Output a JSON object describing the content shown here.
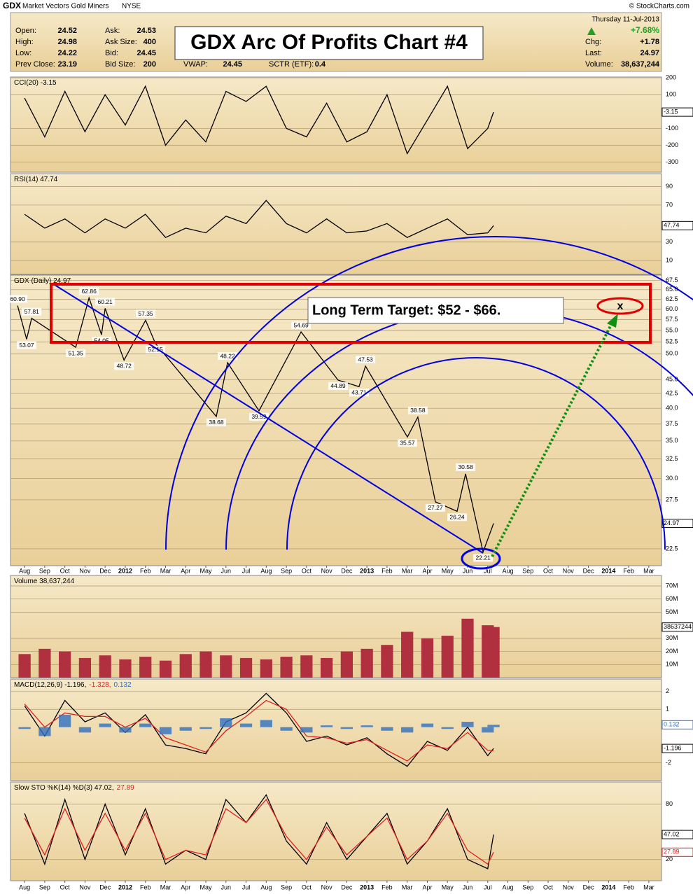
{
  "header": {
    "ticker": "GDX",
    "name": "Market Vectors Gold Miners",
    "exchange": "NYSE",
    "source": "© StockCharts.com",
    "date": "Thursday 11-Jul-2013",
    "change_pct": "+7.68%",
    "stats": [
      [
        [
          "Open:",
          "24.52"
        ],
        [
          "High:",
          "24.98"
        ],
        [
          "Low:",
          "24.22"
        ],
        [
          "Prev Close:",
          "23.19"
        ]
      ],
      [
        [
          "Ask:",
          "24.53"
        ],
        [
          "Ask Size:",
          "400"
        ],
        [
          "Bid:",
          "24.45"
        ],
        [
          "Bid Size:",
          "200"
        ]
      ]
    ],
    "extra": [
      [
        "VWAP:",
        "24.45"
      ],
      [
        "SCTR (ETF):",
        "0.4"
      ]
    ],
    "right": [
      [
        "Chg:",
        "+1.78"
      ],
      [
        "Last:",
        "24.97"
      ],
      [
        "Volume:",
        "38,637,244"
      ]
    ]
  },
  "annotations": {
    "title": "GDX Arc Of Profits Chart #4",
    "target": "Long Term Target: $52 - $66.",
    "marker": "x"
  },
  "chart_data": [
    {
      "type": "line",
      "title": [
        "CCI(20) -3.15"
      ],
      "xlim": [
        -0.7,
        31.63
      ],
      "ylim": [
        -360,
        205
      ],
      "yticks": [
        200,
        100,
        -100,
        -200,
        -300
      ],
      "grid": true,
      "x": [
        0,
        1,
        2,
        3,
        4,
        5,
        6,
        7,
        8,
        9,
        10,
        11,
        12,
        13,
        14,
        15,
        16,
        17,
        18,
        19,
        20,
        21,
        22,
        23,
        23.29
      ],
      "series": [
        {
          "color": "#000000",
          "tag": true,
          "values": [
            80,
            -150,
            120,
            -120,
            100,
            -80,
            150,
            -200,
            -50,
            -180,
            120,
            60,
            150,
            -100,
            -150,
            50,
            -180,
            -120,
            100,
            -250,
            -50,
            150,
            -220,
            -100,
            -3.15
          ]
        }
      ]
    },
    {
      "type": "line",
      "title": [
        "RSI(14) 47.74"
      ],
      "xlim": [
        -0.7,
        31.63
      ],
      "ylim": [
        -5,
        104
      ],
      "yticks": [
        90,
        70,
        30,
        10
      ],
      "grid": true,
      "x": [
        0,
        1,
        2,
        3,
        4,
        5,
        6,
        7,
        8,
        9,
        10,
        11,
        12,
        13,
        14,
        15,
        16,
        17,
        18,
        19,
        20,
        21,
        22,
        23,
        23.29
      ],
      "series": [
        {
          "color": "#000000",
          "tag": true,
          "values": [
            60,
            45,
            55,
            40,
            55,
            45,
            60,
            35,
            45,
            40,
            58,
            50,
            75,
            50,
            40,
            55,
            40,
            42,
            50,
            35,
            45,
            55,
            38,
            40,
            47.74
          ]
        }
      ]
    },
    {
      "type": "line",
      "title": [
        "GDX (Daily) 24.97"
      ],
      "log": true,
      "xlim": [
        -0.7,
        31.63
      ],
      "ylim": [
        21,
        69
      ],
      "grid": true,
      "yticks": [
        {
          "value": 67.5,
          "label": "67.5"
        },
        {
          "value": 65,
          "label": "65.0"
        },
        {
          "value": 62.5,
          "label": "62.5"
        },
        {
          "value": 60,
          "label": "60.0"
        },
        {
          "value": 57.5,
          "label": "57.5"
        },
        {
          "value": 55,
          "label": "55.0"
        },
        {
          "value": 52.5,
          "label": "52.5"
        },
        {
          "value": 50,
          "label": "50.0"
        },
        {
          "value": 45,
          "label": "45.0"
        },
        {
          "value": 42.5,
          "label": "42.5"
        },
        {
          "value": 40,
          "label": "40.0"
        },
        {
          "value": 37.5,
          "label": "37.5"
        },
        {
          "value": 35,
          "label": "35.0"
        },
        {
          "value": 32.5,
          "label": "32.5"
        },
        {
          "value": 30,
          "label": "30.0"
        },
        {
          "value": 27.5,
          "label": "27.5"
        },
        {
          "value": 22.5,
          "label": "22.5"
        }
      ],
      "xticks": [
        {
          "value": 0,
          "label": "Aug"
        },
        {
          "value": 1,
          "label": "Sep"
        },
        {
          "value": 2,
          "label": "Oct"
        },
        {
          "value": 3,
          "label": "Nov"
        },
        {
          "value": 4,
          "label": "Dec"
        },
        {
          "value": 5,
          "label": "2012"
        },
        {
          "value": 6,
          "label": "Feb"
        },
        {
          "value": 7,
          "label": "Mar"
        },
        {
          "value": 8,
          "label": "Apr"
        },
        {
          "value": 9,
          "label": "May"
        },
        {
          "value": 10,
          "label": "Jun"
        },
        {
          "value": 11,
          "label": "Jul"
        },
        {
          "value": 12,
          "label": "Aug"
        },
        {
          "value": 13,
          "label": "Sep"
        },
        {
          "value": 14,
          "label": "Oct"
        },
        {
          "value": 15,
          "label": "Nov"
        },
        {
          "value": 16,
          "label": "Dec"
        },
        {
          "value": 17,
          "label": "2013"
        },
        {
          "value": 18,
          "label": "Feb"
        },
        {
          "value": 19,
          "label": "Mar"
        },
        {
          "value": 20,
          "label": "Apr"
        },
        {
          "value": 21,
          "label": "May"
        },
        {
          "value": 22,
          "label": "Jun"
        },
        {
          "value": 23,
          "label": "Jul"
        },
        {
          "value": 24,
          "label": "Aug"
        },
        {
          "value": 25,
          "label": "Sep"
        },
        {
          "value": 26,
          "label": "Oct"
        },
        {
          "value": 27,
          "label": "Nov"
        },
        {
          "value": 28,
          "label": "Dec"
        },
        {
          "value": 29,
          "label": "2014"
        },
        {
          "value": 30,
          "label": "Feb"
        },
        {
          "value": 31,
          "label": "Mar"
        }
      ],
      "x": [
        -0.35,
        0.1,
        0.35,
        2.54,
        3.2,
        3.82,
        4.0,
        4.94,
        6.01,
        6.5,
        9.52,
        10.08,
        11.64,
        13.73,
        15.57,
        16.61,
        16.93,
        19.01,
        19.53,
        20.4,
        21.48,
        21.9,
        22.77,
        23.29
      ],
      "series": [
        {
          "color": "#000000",
          "tag": true,
          "values": [
            60.9,
            53.07,
            57.81,
            51.35,
            62.86,
            54.05,
            60.21,
            48.72,
            57.35,
            52.15,
            38.68,
            48.22,
            39.59,
            54.69,
            44.89,
            43.71,
            47.53,
            35.57,
            38.58,
            27.27,
            26.24,
            30.58,
            22.21,
            24.97
          ],
          "value_labels": [
            "60.90",
            "53.07",
            "57.81",
            "51.35",
            "62.86",
            "54.05",
            "60.21",
            "48.72",
            "57.35",
            "52.15",
            "38.68",
            "48.22",
            "39.59",
            "54.69",
            "44.89",
            "43.71",
            "47.53",
            "35.57",
            "38.58",
            "27.27",
            "26.24",
            "30.58",
            "22.21",
            "24.97"
          ]
        }
      ]
    },
    {
      "type": "bar",
      "title": [
        "Volume 38,637,244"
      ],
      "xlim": [
        -0.7,
        31.63
      ],
      "ylim": [
        0,
        78000000
      ],
      "grid": true,
      "color": "#b03040",
      "tag": true,
      "yticks": [
        {
          "value": 70000000,
          "label": "70M"
        },
        {
          "value": 60000000,
          "label": "60M"
        },
        {
          "value": 50000000,
          "label": "50M"
        },
        {
          "value": 30000000,
          "label": "30M"
        },
        {
          "value": 20000000,
          "label": "20M"
        },
        {
          "value": 10000000,
          "label": "10M"
        }
      ],
      "x": [
        0,
        1,
        2,
        3,
        4,
        5,
        6,
        7,
        8,
        9,
        10,
        11,
        12,
        13,
        14,
        15,
        16,
        17,
        18,
        19,
        20,
        21,
        22,
        23,
        23.29
      ],
      "values": [
        18000000,
        22000000,
        20000000,
        15000000,
        17000000,
        14000000,
        16000000,
        13000000,
        18000000,
        20000000,
        17000000,
        15000000,
        14000000,
        16000000,
        17000000,
        15000000,
        20000000,
        22000000,
        25000000,
        35000000,
        30000000,
        32000000,
        45000000,
        40000000,
        38637244
      ]
    },
    {
      "type": "line",
      "title": [
        "MACD(12,26,9) -1.196,",
        "-1.328,",
        "0.132"
      ],
      "xlim": [
        -0.7,
        31.63
      ],
      "ylim": [
        -3,
        2.7
      ],
      "yticks": [
        2,
        1,
        -2
      ],
      "grid": true,
      "x": [
        0,
        1,
        2,
        3,
        4,
        5,
        6,
        7,
        8,
        9,
        10,
        11,
        12,
        13,
        14,
        15,
        16,
        17,
        18,
        19,
        20,
        21,
        22,
        23,
        23.29
      ],
      "series": [
        {
          "color": "#000000",
          "tag": true,
          "values": [
            1.2,
            -0.5,
            1.5,
            0.3,
            0.8,
            -0.3,
            0.7,
            -1.0,
            -1.2,
            -1.5,
            0.3,
            0.8,
            1.9,
            0.8,
            -0.8,
            -0.5,
            -1.0,
            -0.6,
            -1.5,
            -2.2,
            -0.8,
            -1.3,
            0.0,
            -1.6,
            -1.196
          ]
        },
        {
          "color": "#e02020",
          "values": [
            1.3,
            0.0,
            0.8,
            0.6,
            0.6,
            0.0,
            0.5,
            -0.6,
            -1.0,
            -1.4,
            -0.2,
            0.6,
            1.5,
            1.0,
            -0.5,
            -0.6,
            -0.9,
            -0.7,
            -1.3,
            -1.9,
            -1.0,
            -1.2,
            -0.3,
            -1.3,
            -1.328
          ]
        },
        {
          "color": "#3070c0",
          "style": "histogram",
          "tag": true,
          "values": [
            -0.1,
            -0.5,
            0.7,
            -0.3,
            0.2,
            -0.3,
            0.2,
            -0.4,
            -0.2,
            -0.1,
            0.5,
            0.2,
            0.4,
            -0.2,
            -0.3,
            0.1,
            -0.1,
            0.1,
            -0.2,
            -0.3,
            0.2,
            -0.1,
            0.3,
            -0.3,
            0.132
          ]
        }
      ]
    },
    {
      "type": "line",
      "title": [
        "Slow STO %K(14) %D(3) 47.02,",
        "27.89"
      ],
      "xlim": [
        -0.7,
        31.63
      ],
      "ylim": [
        -3,
        104
      ],
      "yticks": [
        80,
        20
      ],
      "grid": true,
      "xticks": [
        {
          "value": 0,
          "label": "Aug"
        },
        {
          "value": 1,
          "label": "Sep"
        },
        {
          "value": 2,
          "label": "Oct"
        },
        {
          "value": 3,
          "label": "Nov"
        },
        {
          "value": 4,
          "label": "Dec"
        },
        {
          "value": 5,
          "label": "2012"
        },
        {
          "value": 6,
          "label": "Feb"
        },
        {
          "value": 7,
          "label": "Mar"
        },
        {
          "value": 8,
          "label": "Apr"
        },
        {
          "value": 9,
          "label": "May"
        },
        {
          "value": 10,
          "label": "Jun"
        },
        {
          "value": 11,
          "label": "Jul"
        },
        {
          "value": 12,
          "label": "Aug"
        },
        {
          "value": 13,
          "label": "Sep"
        },
        {
          "value": 14,
          "label": "Oct"
        },
        {
          "value": 15,
          "label": "Nov"
        },
        {
          "value": 16,
          "label": "Dec"
        },
        {
          "value": 17,
          "label": "2013"
        },
        {
          "value": 18,
          "label": "Feb"
        },
        {
          "value": 19,
          "label": "Mar"
        },
        {
          "value": 20,
          "label": "Apr"
        },
        {
          "value": 21,
          "label": "May"
        },
        {
          "value": 22,
          "label": "Jun"
        },
        {
          "value": 23,
          "label": "Jul"
        },
        {
          "value": 24,
          "label": "Aug"
        },
        {
          "value": 25,
          "label": "Sep"
        },
        {
          "value": 26,
          "label": "Oct"
        },
        {
          "value": 27,
          "label": "Nov"
        },
        {
          "value": 28,
          "label": "Dec"
        },
        {
          "value": 29,
          "label": "2014"
        },
        {
          "value": 30,
          "label": "Feb"
        },
        {
          "value": 31,
          "label": "Mar"
        }
      ],
      "x": [
        0,
        1,
        2,
        3,
        4,
        5,
        6,
        7,
        8,
        9,
        10,
        11,
        12,
        13,
        14,
        15,
        16,
        17,
        18,
        19,
        20,
        21,
        22,
        23,
        23.29
      ],
      "series": [
        {
          "color": "#000000",
          "tag": true,
          "values": [
            70,
            15,
            85,
            20,
            80,
            25,
            75,
            15,
            30,
            20,
            85,
            60,
            90,
            40,
            15,
            60,
            20,
            45,
            70,
            15,
            40,
            75,
            20,
            10,
            47.02
          ]
        },
        {
          "color": "#e02020",
          "tag": true,
          "values": [
            65,
            25,
            75,
            30,
            70,
            30,
            70,
            20,
            30,
            25,
            75,
            60,
            85,
            45,
            20,
            55,
            25,
            45,
            65,
            20,
            40,
            70,
            30,
            15,
            27.89
          ]
        }
      ]
    }
  ]
}
